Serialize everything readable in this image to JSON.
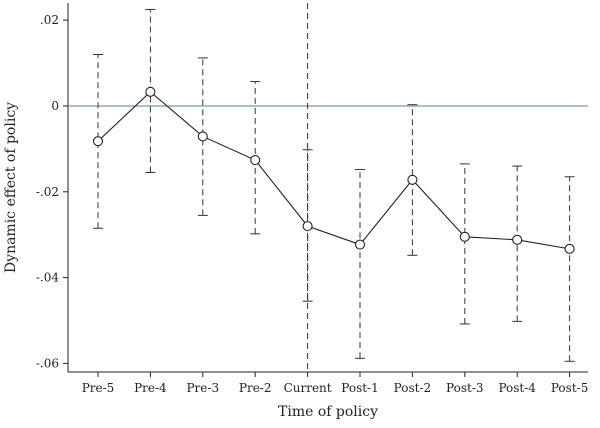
{
  "chart_data": {
    "type": "line",
    "title": "",
    "xlabel": "Time of policy",
    "ylabel": "Dynamic effect of policy",
    "categories": [
      "Pre-5",
      "Pre-4",
      "Pre-3",
      "Pre-2",
      "Current",
      "Post-1",
      "Post-2",
      "Post-3",
      "Post-4",
      "Post-5"
    ],
    "series": [
      {
        "values": [
          -0.0082,
          0.0033,
          -0.0071,
          -0.0126,
          -0.028,
          -0.0323,
          -0.0172,
          -0.0305,
          -0.0312,
          -0.0333
        ],
        "ci_low": [
          -0.0285,
          -0.0155,
          -0.0255,
          -0.0298,
          -0.0455,
          -0.0588,
          -0.0348,
          -0.0508,
          -0.0502,
          -0.0595
        ],
        "ci_high": [
          0.012,
          0.0225,
          0.0112,
          0.0057,
          -0.0102,
          -0.0148,
          0.0003,
          -0.0135,
          -0.014,
          -0.0165
        ]
      }
    ],
    "yticks": [
      0.02,
      0,
      -0.02,
      -0.04,
      -0.06
    ],
    "ytick_labels": [
      ".02",
      "0",
      "-.02",
      "-.04",
      "-.06"
    ],
    "ylim": [
      -0.062,
      0.024
    ],
    "reference_line": 0,
    "reference_color": "#7f97ae",
    "grid": false,
    "legend": "none",
    "current_ci_extends_beyond_axes": true
  }
}
